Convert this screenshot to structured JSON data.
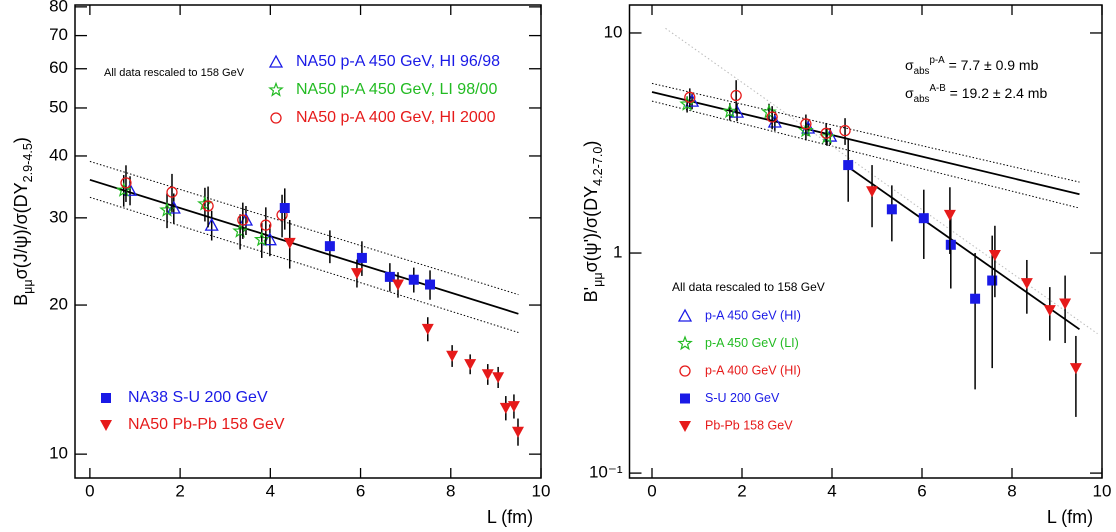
{
  "chart_data": [
    {
      "type": "scatter",
      "ylog": true,
      "xlim": [
        -0.33,
        10
      ],
      "xticks": [
        0,
        2,
        4,
        6,
        8,
        10
      ],
      "ylim": [
        8.95,
        80.7
      ],
      "yticks": [
        10,
        20,
        30,
        40,
        50,
        60,
        70,
        80
      ],
      "x_label": "L (fm)",
      "y_label": [
        {
          "text": "B"
        },
        {
          "text": "μμ",
          "shift": "sub"
        },
        {
          "text": "σ(J/ψ)/σ(DY"
        },
        {
          "text": "2.9-4.5",
          "shift": "sub"
        },
        {
          "text": ")"
        }
      ],
      "annotation": "All data rescaled to 158 GeV",
      "series": [
        {
          "name": "NA50 p-A 450 GeV, HI 96/98",
          "color": "#1a1ae6",
          "marker": "triangle",
          "x": [
            0.89,
            1.86,
            2.7,
            3.46,
            3.99
          ],
          "values": [
            34.1,
            31.4,
            29.0,
            29.7,
            27.1
          ],
          "errors": [
            2.3,
            2.2,
            2.0,
            2.0,
            2.0
          ]
        },
        {
          "name": "NA50 p-A 450 GeV, LI 98/00",
          "color": "#22bb22",
          "marker": "star",
          "x": [
            0.75,
            1.71,
            2.55,
            3.33,
            3.81
          ],
          "values": [
            34.1,
            31.1,
            32.0,
            28.2,
            27.1
          ],
          "errors": [
            2.5,
            2.5,
            2.5,
            2.3,
            2.2
          ]
        },
        {
          "name": "NA50 p-A 400 GeV, HI 2000",
          "color": "#e61a1a",
          "marker": "circle",
          "x": [
            0.8,
            1.82,
            2.62,
            3.39,
            3.9,
            4.26
          ],
          "values": [
            35.3,
            33.8,
            31.7,
            29.7,
            29.0,
            30.4
          ],
          "errors": [
            3.0,
            3.0,
            3.0,
            2.5,
            2.5,
            3.0
          ]
        },
        {
          "name": "NA38 S-U 200 GeV",
          "color": "#1a1ae6",
          "marker": "square",
          "x": [
            4.32,
            5.32,
            6.03,
            6.65,
            7.18,
            7.54
          ],
          "values": [
            31.4,
            26.3,
            24.9,
            22.8,
            22.5,
            22.0
          ],
          "errors": [
            3.0,
            2.0,
            2.0,
            1.5,
            1.3,
            1.5
          ]
        },
        {
          "name": "NA50 Pb-Pb 158 GeV",
          "color": "#e61a1a",
          "marker": "down-triangle",
          "x": [
            4.43,
            5.92,
            6.83,
            7.49,
            8.03,
            8.43,
            8.82,
            9.05,
            9.22,
            9.4,
            9.49
          ],
          "values": [
            26.7,
            23.2,
            22.0,
            17.9,
            15.8,
            15.2,
            14.5,
            14.3,
            12.4,
            12.5,
            11.1
          ],
          "errors": [
            3.0,
            1.5,
            1.3,
            1.0,
            0.8,
            0.7,
            0.7,
            0.7,
            0.7,
            0.7,
            0.7
          ]
        }
      ],
      "fit_lines": [
        {
          "x": [
            0,
            9.5
          ],
          "values": [
            35.8,
            19.2
          ],
          "style": "solid"
        },
        {
          "x": [
            0,
            9.5
          ],
          "values": [
            39.0,
            21.0
          ],
          "style": "dotted"
        },
        {
          "x": [
            0,
            9.5
          ],
          "values": [
            33.0,
            17.6
          ],
          "style": "dotted"
        }
      ]
    },
    {
      "type": "scatter",
      "ylog": true,
      "xlim": [
        -0.5,
        10
      ],
      "xticks": [
        0,
        2,
        4,
        6,
        8,
        10
      ],
      "ylim": [
        0.095,
        13.4
      ],
      "yticks": [
        {
          "value": 0.1,
          "label": "10⁻¹"
        },
        1,
        10
      ],
      "x_label": "L (fm)",
      "y_label": [
        {
          "text": "B'"
        },
        {
          "text": "μμ",
          "shift": "sub"
        },
        {
          "text": "σ(ψ')/σ(DY"
        },
        {
          "text": "4.2-7.0",
          "shift": "sub"
        },
        {
          "text": ")"
        }
      ],
      "annotation": "All data rescaled to 158 GeV",
      "notes": [
        [
          {
            "text": "σ"
          },
          {
            "text": "abs",
            "shift": "sub"
          },
          {
            "text": "p-A",
            "shift": "super"
          },
          {
            "text": " = 7.7 ± 0.9 mb"
          }
        ],
        [
          {
            "text": "σ"
          },
          {
            "text": "abs",
            "shift": "sub"
          },
          {
            "text": "A-B",
            "shift": "super"
          },
          {
            "text": " = 19.2 ± 2.4 mb"
          }
        ]
      ],
      "series": [
        {
          "name": "p-A 450 GeV (HI)",
          "color": "#1a1ae6",
          "marker": "triangle",
          "x": [
            0.89,
            1.89,
            2.73,
            3.47,
            3.96
          ],
          "values": [
            4.9,
            4.37,
            3.94,
            3.7,
            3.4
          ],
          "errors": [
            0.4,
            0.4,
            0.35,
            0.3,
            0.3
          ]
        },
        {
          "name": "p-A 450 GeV (LI)",
          "color": "#22bb22",
          "marker": "star",
          "x": [
            0.78,
            1.73,
            2.6,
            3.42,
            3.89
          ],
          "values": [
            4.75,
            4.4,
            4.37,
            3.6,
            3.37
          ],
          "errors": [
            0.4,
            0.4,
            0.4,
            0.35,
            0.3
          ]
        },
        {
          "name": "p-A 400 GeV (HI)",
          "color": "#e61a1a",
          "marker": "circle",
          "x": [
            0.84,
            1.87,
            2.67,
            3.42,
            3.87,
            4.29
          ],
          "values": [
            5.1,
            5.2,
            4.15,
            3.86,
            3.5,
            3.6
          ],
          "errors": [
            0.5,
            0.9,
            0.5,
            0.4,
            0.4,
            0.5
          ]
        },
        {
          "name": "S-U 200 GeV",
          "color": "#1a1ae6",
          "marker": "square",
          "x": [
            4.36,
            5.33,
            6.04,
            6.64,
            7.18,
            7.56
          ],
          "values": [
            2.51,
            1.58,
            1.44,
            1.09,
            0.62,
            0.75
          ],
          "errors": [
            0.8,
            0.45,
            0.5,
            0.4,
            0.38,
            0.45
          ]
        },
        {
          "name": "Pb-Pb 158 GeV",
          "color": "#e61a1a",
          "marker": "down-triangle",
          "x": [
            4.89,
            6.62,
            7.62,
            8.33,
            8.84,
            9.18,
            9.42
          ],
          "values": [
            1.91,
            1.49,
            0.98,
            0.73,
            0.55,
            0.59,
            0.3
          ],
          "errors": [
            0.6,
            0.5,
            0.35,
            0.2,
            0.15,
            0.2,
            0.12
          ]
        }
      ],
      "fit_lines": [
        {
          "x": [
            0,
            9.5
          ],
          "values": [
            5.39,
            1.85
          ],
          "style": "solid"
        },
        {
          "x": [
            0,
            9.5
          ],
          "values": [
            5.9,
            2.1
          ],
          "style": "dotted"
        },
        {
          "x": [
            0,
            9.5
          ],
          "values": [
            4.9,
            1.6
          ],
          "style": "dotted"
        },
        {
          "x": [
            4.3,
            9.5
          ],
          "values": [
            2.51,
            0.45
          ],
          "style": "solid"
        },
        {
          "x": [
            0.3,
            9.9
          ],
          "values": [
            10.5,
            0.43
          ],
          "style": "faint"
        }
      ]
    }
  ]
}
